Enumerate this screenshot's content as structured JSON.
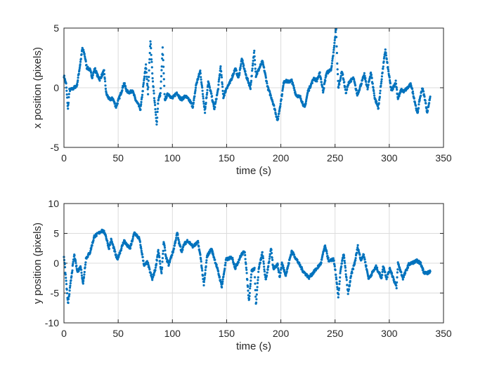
{
  "chart_data": [
    {
      "type": "scatter",
      "xlabel": "time (s)",
      "ylabel": "x position (pixels)",
      "xlim": [
        0,
        350
      ],
      "ylim": [
        -5,
        5
      ],
      "xticks": [
        0,
        50,
        100,
        150,
        200,
        250,
        300,
        350
      ],
      "yticks": [
        -5,
        0,
        5
      ],
      "grid": true,
      "color": "#0072BD",
      "points": [
        [
          0,
          1.0
        ],
        [
          2,
          0.3
        ],
        [
          3.7,
          -1.8
        ],
        [
          5,
          -0.2
        ],
        [
          8,
          -0.1
        ],
        [
          12,
          0.2
        ],
        [
          15,
          2.0
        ],
        [
          17,
          3.3
        ],
        [
          19,
          2.8
        ],
        [
          21,
          1.7
        ],
        [
          24,
          1.5
        ],
        [
          26,
          0.9
        ],
        [
          28.5,
          1.6
        ],
        [
          31,
          1.0
        ],
        [
          33,
          0.7
        ],
        [
          37,
          1.4
        ],
        [
          39,
          -0.5
        ],
        [
          42,
          -1.0
        ],
        [
          45,
          -0.9
        ],
        [
          48,
          -1.6
        ],
        [
          52,
          -0.6
        ],
        [
          55.5,
          0.4
        ],
        [
          58,
          -0.3
        ],
        [
          61,
          -0.4
        ],
        [
          63,
          -0.2
        ],
        [
          66,
          -1.0
        ],
        [
          70.6,
          -1.8
        ],
        [
          73,
          0.0
        ],
        [
          75.6,
          1.9
        ],
        [
          77.5,
          -0.5
        ],
        [
          79.7,
          4.0
        ],
        [
          82,
          0.5
        ],
        [
          85.5,
          -3.1
        ],
        [
          87,
          -1.0
        ],
        [
          89,
          -0.5
        ],
        [
          91,
          3.3
        ],
        [
          93,
          -1.0
        ],
        [
          96,
          -0.5
        ],
        [
          100,
          -0.9
        ],
        [
          104,
          -0.4
        ],
        [
          108,
          -1.0
        ],
        [
          112,
          -0.7
        ],
        [
          116,
          -1.1
        ],
        [
          119,
          -1.6
        ],
        [
          122,
          0.3
        ],
        [
          125.7,
          1.4
        ],
        [
          128,
          -0.5
        ],
        [
          130,
          -2.0
        ],
        [
          133,
          0.5
        ],
        [
          136,
          -0.6
        ],
        [
          138.7,
          -1.8
        ],
        [
          142,
          -0.2
        ],
        [
          144.5,
          1.8
        ],
        [
          147,
          -0.8
        ],
        [
          150,
          0.0
        ],
        [
          153,
          0.4
        ],
        [
          158,
          1.6
        ],
        [
          161,
          0.8
        ],
        [
          164,
          2.4
        ],
        [
          168,
          1.0
        ],
        [
          172,
          0.0
        ],
        [
          175.5,
          3.1
        ],
        [
          177,
          1.0
        ],
        [
          180,
          1.6
        ],
        [
          183,
          2.2
        ],
        [
          185,
          1.4
        ],
        [
          188,
          0.0
        ],
        [
          192,
          -1.0
        ],
        [
          195,
          -2.0
        ],
        [
          197,
          -2.8
        ],
        [
          201,
          -0.6
        ],
        [
          203,
          0.6
        ],
        [
          207,
          0.5
        ],
        [
          210,
          0.6
        ],
        [
          214,
          -0.6
        ],
        [
          218,
          -0.8
        ],
        [
          222,
          -1.7
        ],
        [
          225,
          -0.3
        ],
        [
          230.5,
          0.8
        ],
        [
          233,
          0.6
        ],
        [
          236,
          1.2
        ],
        [
          239,
          -0.3
        ],
        [
          242,
          1.2
        ],
        [
          246.7,
          1.6
        ],
        [
          249,
          3.3
        ],
        [
          251,
          5.0
        ],
        [
          252,
          2.1
        ],
        [
          253,
          0.0
        ],
        [
          256.4,
          1.4
        ],
        [
          260,
          -0.4
        ],
        [
          263,
          0.5
        ],
        [
          267,
          0.8
        ],
        [
          270.5,
          -0.6
        ],
        [
          274,
          0.3
        ],
        [
          277,
          1.1
        ],
        [
          280,
          -0.1
        ],
        [
          283,
          1.3
        ],
        [
          286.7,
          -0.9
        ],
        [
          290,
          -1.7
        ],
        [
          293,
          0.8
        ],
        [
          296.4,
          3.2
        ],
        [
          298.5,
          1.8
        ],
        [
          302,
          -0.3
        ],
        [
          306,
          0.5
        ],
        [
          308,
          -0.9
        ],
        [
          311,
          -0.2
        ],
        [
          313.5,
          -0.3
        ],
        [
          317,
          0.0
        ],
        [
          320,
          0.3
        ],
        [
          322,
          -0.5
        ],
        [
          326,
          -2.2
        ],
        [
          328,
          -1.0
        ],
        [
          330.5,
          0.0
        ],
        [
          333,
          -1.0
        ],
        [
          335,
          -2.1
        ],
        [
          338,
          -0.6
        ]
      ]
    },
    {
      "type": "scatter",
      "xlabel": "time (s)",
      "ylabel": "y position (pixels)",
      "xlim": [
        0,
        350
      ],
      "ylim": [
        -10,
        10
      ],
      "xticks": [
        0,
        50,
        100,
        150,
        200,
        250,
        300,
        350
      ],
      "yticks": [
        -10,
        -5,
        0,
        5,
        10
      ],
      "grid": true,
      "color": "#0072BD",
      "points": [
        [
          0,
          1.2
        ],
        [
          2,
          -3.0
        ],
        [
          3.7,
          -6.8
        ],
        [
          5,
          -5.1
        ],
        [
          7,
          -2.0
        ],
        [
          9.5,
          1.4
        ],
        [
          12.3,
          -1.4
        ],
        [
          15.5,
          -0.6
        ],
        [
          17.7,
          -3.5
        ],
        [
          20.3,
          0.8
        ],
        [
          24,
          1.8
        ],
        [
          28,
          4.5
        ],
        [
          32,
          5.0
        ],
        [
          35,
          5.5
        ],
        [
          38,
          5.0
        ],
        [
          41.5,
          2.5
        ],
        [
          43.5,
          3.9
        ],
        [
          46,
          2.5
        ],
        [
          49,
          0.6
        ],
        [
          52,
          2.0
        ],
        [
          55.5,
          3.8
        ],
        [
          58,
          3.0
        ],
        [
          61,
          2.5
        ],
        [
          65,
          5.1
        ],
        [
          69.5,
          4.1
        ],
        [
          74,
          -0.4
        ],
        [
          77,
          0.2
        ],
        [
          79,
          -1.2
        ],
        [
          81.5,
          -2.7
        ],
        [
          84.5,
          -0.8
        ],
        [
          87,
          2.2
        ],
        [
          90,
          -1.9
        ],
        [
          92,
          3.7
        ],
        [
          94,
          1.0
        ],
        [
          96.5,
          -0.2
        ],
        [
          101,
          2.2
        ],
        [
          104.5,
          5.1
        ],
        [
          106,
          3.5
        ],
        [
          108.5,
          2.0
        ],
        [
          111,
          3.2
        ],
        [
          114,
          3.8
        ],
        [
          119,
          2.8
        ],
        [
          123.6,
          3.5
        ],
        [
          126,
          1.0
        ],
        [
          129,
          -3.7
        ],
        [
          132,
          1.2
        ],
        [
          136,
          2.4
        ],
        [
          141,
          -0.6
        ],
        [
          145.6,
          -3.9
        ],
        [
          149.5,
          0.6
        ],
        [
          155,
          1.0
        ],
        [
          158,
          -0.8
        ],
        [
          163.5,
          1.4
        ],
        [
          166.8,
          2.0
        ],
        [
          170.6,
          -6.3
        ],
        [
          173,
          -1.3
        ],
        [
          175.8,
          -0.9
        ],
        [
          177,
          -7.0
        ],
        [
          179.6,
          -1.0
        ],
        [
          183,
          1.8
        ],
        [
          186,
          -2.9
        ],
        [
          188,
          -0.9
        ],
        [
          191,
          2.4
        ],
        [
          193,
          -0.9
        ],
        [
          197,
          -0.2
        ],
        [
          199,
          -2.3
        ],
        [
          201,
          0.0
        ],
        [
          204.6,
          -2.0
        ],
        [
          210,
          2.0
        ],
        [
          214,
          0.8
        ],
        [
          220.8,
          -1.4
        ],
        [
          226,
          -2.4
        ],
        [
          231.7,
          -1.2
        ],
        [
          237,
          0.0
        ],
        [
          240.6,
          2.9
        ],
        [
          244.5,
          0.2
        ],
        [
          248.4,
          0.8
        ],
        [
          250,
          -0.9
        ],
        [
          253,
          -5.7
        ],
        [
          255,
          -1.2
        ],
        [
          258,
          1.6
        ],
        [
          262,
          -5.1
        ],
        [
          265,
          -1.9
        ],
        [
          268.3,
          0.2
        ],
        [
          271,
          2.8
        ],
        [
          273.6,
          0.6
        ],
        [
          276.5,
          1.4
        ],
        [
          281,
          -2.6
        ],
        [
          287.8,
          -0.6
        ],
        [
          293,
          -2.5
        ],
        [
          294.4,
          -0.4
        ],
        [
          297.5,
          -2.5
        ],
        [
          300.7,
          -0.9
        ],
        [
          306.7,
          -4.1
        ],
        [
          308,
          0.0
        ],
        [
          312.6,
          -2.5
        ],
        [
          318,
          -0.2
        ],
        [
          325.5,
          0.4
        ],
        [
          328.8,
          0.0
        ],
        [
          332,
          -1.5
        ],
        [
          335,
          -1.7
        ],
        [
          338,
          -1.3
        ]
      ]
    }
  ]
}
